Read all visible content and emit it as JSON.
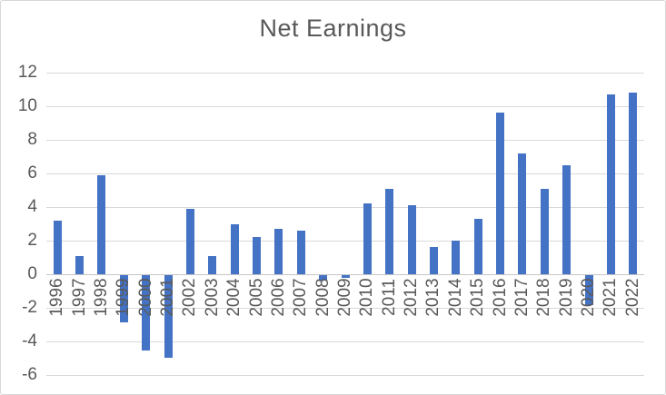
{
  "chart_data": {
    "type": "bar",
    "title": "Net Earnings",
    "categories": [
      "1996",
      "1997",
      "1998",
      "1999",
      "2000",
      "2001",
      "2002",
      "2003",
      "2004",
      "2005",
      "2006",
      "2007",
      "2008",
      "2009",
      "2010",
      "2011",
      "2012",
      "2013",
      "2014",
      "2015",
      "2016",
      "2017",
      "2018",
      "2019",
      "2020",
      "2021",
      "2022"
    ],
    "values": [
      3.2,
      1.1,
      5.9,
      -2.8,
      -4.5,
      -4.9,
      3.9,
      1.1,
      3.0,
      2.2,
      2.7,
      2.6,
      -0.3,
      -0.15,
      4.2,
      5.1,
      4.1,
      1.6,
      2.0,
      3.3,
      9.6,
      7.2,
      5.1,
      6.5,
      -1.8,
      10.7,
      10.8
    ],
    "xlabel": "",
    "ylabel": "",
    "ylim": [
      -6,
      12
    ],
    "ytick_step": 2,
    "ytick_labels": [
      "12",
      "10",
      "8",
      "6",
      "4",
      "2",
      "0",
      "-2",
      "-4",
      "-6"
    ],
    "x_label_rotation": -90,
    "grid": true,
    "legend": false,
    "bar_color": "#4472c4",
    "gridline_color": "#d9d9d9",
    "axis_line_color": "#c6c6c6",
    "text_color": "#595959",
    "title_color": "#595959"
  }
}
